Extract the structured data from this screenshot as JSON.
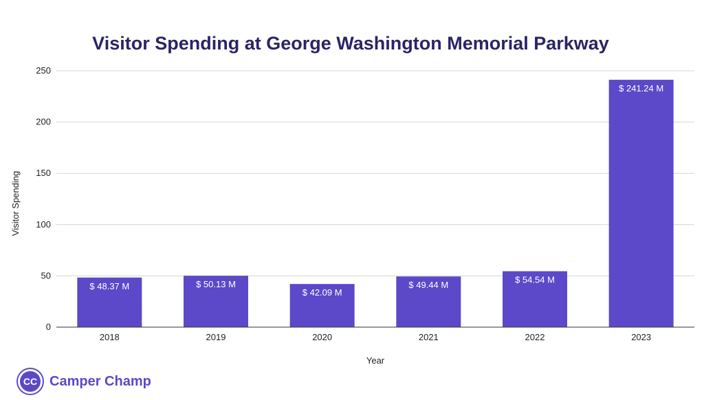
{
  "colors": {
    "bar": "#5b49c9",
    "title": "#2b2465",
    "brand": "#5b49c9"
  },
  "brand": {
    "logo_text": "CC",
    "name": "Camper Champ"
  },
  "chart_data": {
    "type": "bar",
    "title": "Visitor Spending at George Washington Memorial Parkway",
    "xlabel": "Year",
    "ylabel": "Visitor Spending",
    "categories": [
      "2018",
      "2019",
      "2020",
      "2021",
      "2022",
      "2023"
    ],
    "values": [
      48.37,
      50.13,
      42.09,
      49.44,
      54.54,
      241.24
    ],
    "data_labels": [
      "$ 48.37 M",
      "$ 50.13 M",
      "$ 42.09 M",
      "$ 49.44 M",
      "$ 54.54 M",
      "$ 241.24 M"
    ],
    "ylim": [
      0,
      250
    ],
    "yticks": [
      "0",
      "50",
      "100",
      "150",
      "200",
      "250"
    ],
    "grid": true,
    "legend": "none"
  }
}
